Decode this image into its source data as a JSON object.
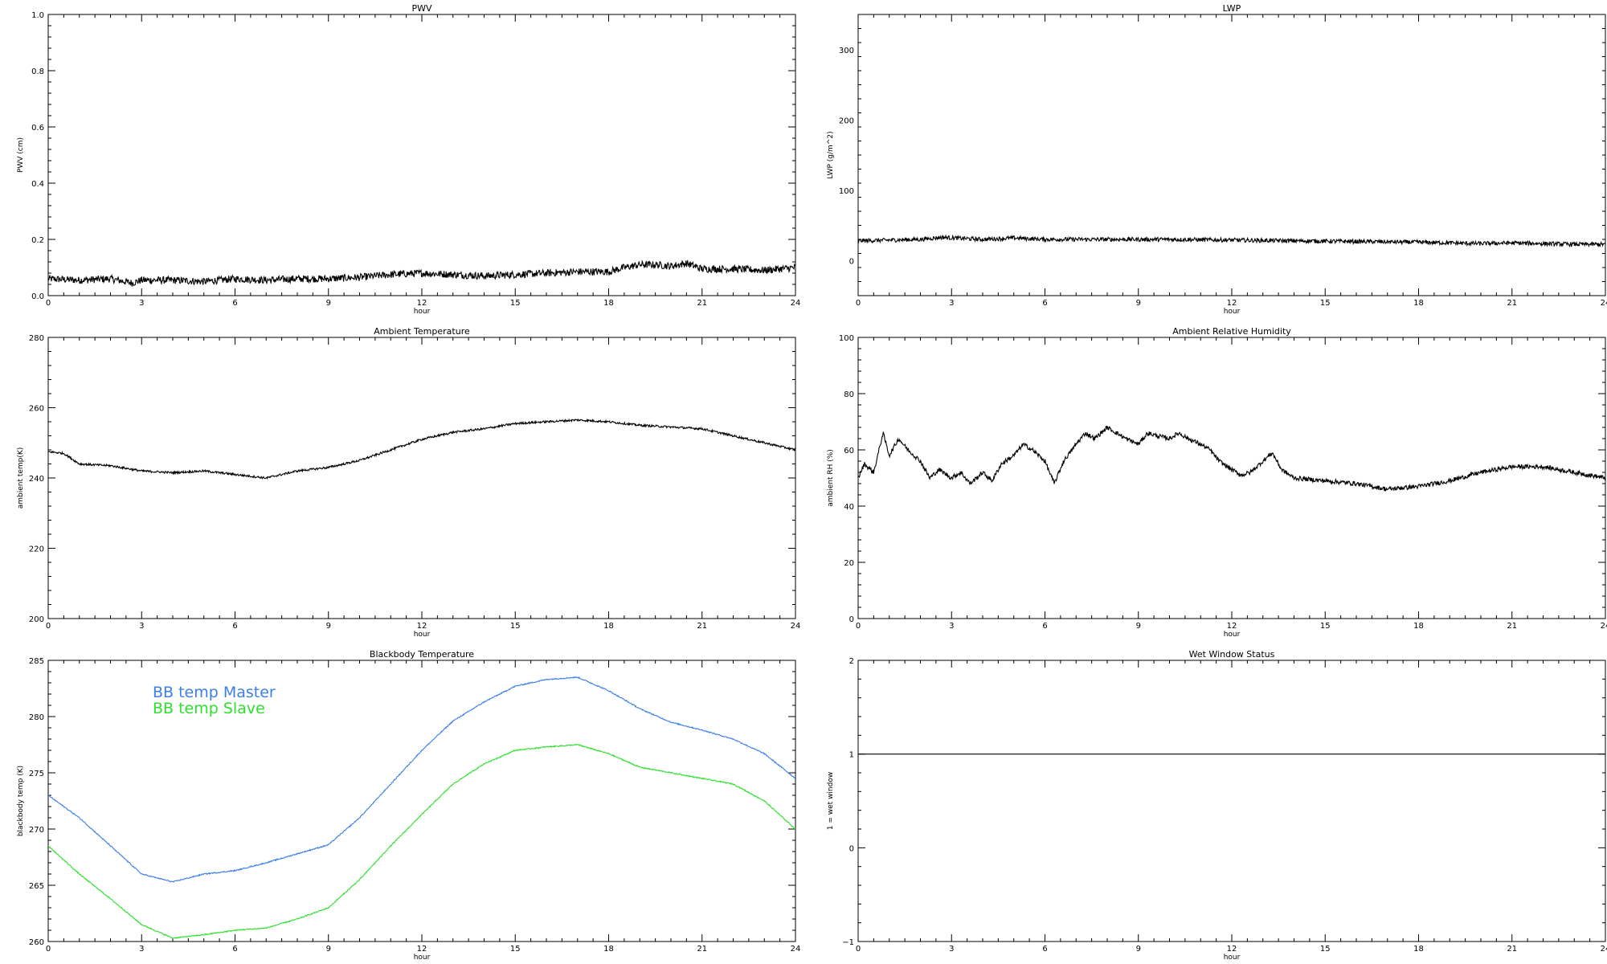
{
  "chart_data": [
    {
      "id": "pwv",
      "type": "line",
      "title": "PWV",
      "xlabel": "hour",
      "ylabel": "PWV (cm)",
      "xlim": [
        0,
        24
      ],
      "ylim": [
        0,
        1
      ],
      "xticks": [
        0,
        3,
        6,
        9,
        12,
        15,
        18,
        21,
        24
      ],
      "yticks": [
        0.0,
        0.2,
        0.4,
        0.6,
        0.8,
        1.0
      ],
      "ytick_labels": [
        "0.0",
        "0.2",
        "0.4",
        "0.6",
        "0.8",
        "1.0"
      ],
      "grid": false,
      "series": [
        {
          "color": "#000000",
          "noise": 0.013,
          "x": [
            0,
            1,
            2,
            2.7,
            3,
            4,
            5,
            6,
            7,
            8,
            9,
            10,
            11,
            12,
            13,
            14,
            15,
            16,
            17,
            18,
            18.5,
            19,
            19.5,
            20,
            20.5,
            21,
            22,
            23,
            24
          ],
          "y": [
            0.06,
            0.055,
            0.06,
            0.045,
            0.055,
            0.055,
            0.05,
            0.06,
            0.055,
            0.06,
            0.06,
            0.065,
            0.075,
            0.08,
            0.075,
            0.07,
            0.075,
            0.08,
            0.085,
            0.085,
            0.1,
            0.11,
            0.11,
            0.105,
            0.115,
            0.095,
            0.095,
            0.09,
            0.1
          ]
        }
      ]
    },
    {
      "id": "lwp",
      "type": "line",
      "title": "LWP",
      "xlabel": "hour",
      "ylabel": "LWP (g/m^2)",
      "xlim": [
        0,
        24
      ],
      "ylim": [
        -50,
        350
      ],
      "xticks": [
        0,
        3,
        6,
        9,
        12,
        15,
        18,
        21,
        24
      ],
      "yticks": [
        0,
        100,
        200,
        300
      ],
      "ytick_labels": [
        "0",
        "100",
        "200",
        "300"
      ],
      "grid": false,
      "series": [
        {
          "color": "#000000",
          "noise": 3,
          "x": [
            0,
            2,
            2.7,
            4,
            5,
            6,
            8,
            10,
            12,
            14,
            16,
            18,
            19,
            20,
            21,
            22,
            23,
            24
          ],
          "y": [
            28,
            30,
            33,
            30,
            32,
            30,
            30,
            30,
            29,
            28,
            27,
            26,
            25,
            24,
            25,
            24,
            23,
            23
          ]
        }
      ]
    },
    {
      "id": "ambient_temperature",
      "type": "line",
      "title": "Ambient Temperature",
      "xlabel": "hour",
      "ylabel": "ambient temp(K)",
      "xlim": [
        0,
        24
      ],
      "ylim": [
        200,
        280
      ],
      "xticks": [
        0,
        3,
        6,
        9,
        12,
        15,
        18,
        21,
        24
      ],
      "yticks": [
        200,
        220,
        240,
        260,
        280
      ],
      "ytick_labels": [
        "200",
        "220",
        "240",
        "260",
        "280"
      ],
      "grid": false,
      "series": [
        {
          "color": "#000000",
          "noise": 0.3,
          "x": [
            0,
            0.5,
            1,
            2,
            3,
            4,
            5,
            6,
            7,
            8,
            9,
            10,
            11,
            12,
            13,
            14,
            15,
            16,
            17,
            18,
            19,
            20,
            21,
            22,
            23,
            24
          ],
          "y": [
            247.5,
            247,
            244,
            243.5,
            242,
            241.5,
            242,
            241,
            240,
            242,
            243,
            245,
            248,
            251,
            253,
            254,
            255.5,
            256,
            256.5,
            256,
            255,
            254.5,
            254,
            252,
            250,
            248
          ]
        }
      ]
    },
    {
      "id": "ambient_relative_humidity",
      "type": "line",
      "title": "Ambient Relative Humidity",
      "xlabel": "hour",
      "ylabel": "ambient RH (%)",
      "xlim": [
        0,
        24
      ],
      "ylim": [
        0,
        100
      ],
      "xticks": [
        0,
        3,
        6,
        9,
        12,
        15,
        18,
        21,
        24
      ],
      "yticks": [
        0,
        20,
        40,
        60,
        80,
        100
      ],
      "ytick_labels": [
        "0",
        "20",
        "40",
        "60",
        "80",
        "100"
      ],
      "grid": false,
      "series": [
        {
          "color": "#000000",
          "noise": 0.8,
          "x": [
            0,
            0.2,
            0.5,
            0.8,
            1.0,
            1.3,
            1.6,
            2.0,
            2.3,
            2.6,
            3.0,
            3.3,
            3.6,
            4.0,
            4.3,
            4.6,
            5.0,
            5.3,
            5.6,
            6.0,
            6.3,
            6.6,
            7.0,
            7.3,
            7.6,
            8.0,
            8.3,
            8.6,
            9.0,
            9.3,
            9.6,
            10.0,
            10.3,
            10.6,
            11.0,
            11.3,
            11.6,
            12.0,
            12.3,
            12.6,
            13.0,
            13.3,
            13.6,
            14.0,
            15.0,
            16.0,
            17.0,
            18.0,
            19.0,
            20.0,
            21.0,
            22.0,
            23.0,
            23.5,
            24.0
          ],
          "y": [
            50,
            55,
            52,
            66,
            58,
            64,
            60,
            56,
            50,
            53,
            50,
            52,
            48,
            52,
            49,
            55,
            58,
            62,
            60,
            56,
            48,
            56,
            62,
            66,
            64,
            68,
            66,
            64,
            62,
            66,
            65,
            64,
            66,
            64,
            62,
            60,
            56,
            53,
            51,
            52,
            56,
            59,
            53,
            50,
            49,
            48,
            46,
            47,
            49,
            52,
            54,
            54,
            52,
            51,
            50
          ]
        }
      ]
    },
    {
      "id": "blackbody_temperature",
      "type": "line",
      "title": "Blackbody Temperature",
      "xlabel": "hour",
      "ylabel": "blackbody temp (K)",
      "xlim": [
        0,
        24
      ],
      "ylim": [
        260,
        285
      ],
      "xticks": [
        0,
        3,
        6,
        9,
        12,
        15,
        18,
        21,
        24
      ],
      "yticks": [
        260,
        265,
        270,
        275,
        280,
        285
      ],
      "ytick_labels": [
        "260",
        "265",
        "270",
        "275",
        "280",
        "285"
      ],
      "grid": false,
      "legend": "top-left",
      "series": [
        {
          "name": "BB temp Master",
          "color": "#3b7fe8",
          "noise": 0.05,
          "x": [
            0,
            1,
            2,
            3,
            4,
            5,
            6,
            7,
            8,
            9,
            10,
            11,
            12,
            13,
            14,
            15,
            16,
            17,
            18,
            19,
            20,
            21,
            22,
            23,
            24
          ],
          "y": [
            273,
            271,
            268.5,
            266,
            265.3,
            266,
            266.3,
            267,
            267.8,
            268.6,
            271,
            274,
            277,
            279.6,
            281.3,
            282.7,
            283.3,
            283.5,
            282.3,
            280.7,
            279.5,
            278.8,
            278,
            276.7,
            274.5
          ]
        },
        {
          "name": "BB temp Slave",
          "color": "#2ee02e",
          "noise": 0.05,
          "x": [
            0,
            1,
            2,
            3,
            4,
            5,
            6,
            7,
            8,
            9,
            10,
            11,
            12,
            13,
            14,
            15,
            16,
            17,
            18,
            19,
            20,
            21,
            22,
            23,
            24
          ],
          "y": [
            268.5,
            266,
            263.8,
            261.5,
            260.3,
            260.6,
            261,
            261.2,
            262,
            263,
            265.5,
            268.5,
            271.3,
            274,
            275.8,
            277,
            277.3,
            277.5,
            276.7,
            275.5,
            275,
            274.5,
            274,
            272.5,
            270
          ]
        }
      ]
    },
    {
      "id": "wet_window_status",
      "type": "line",
      "title": "Wet Window Status",
      "xlabel": "hour",
      "ylabel": "1 = wet window",
      "xlim": [
        0,
        24
      ],
      "ylim": [
        -1,
        2
      ],
      "xticks": [
        0,
        3,
        6,
        9,
        12,
        15,
        18,
        21,
        24
      ],
      "yticks": [
        -1,
        0,
        1,
        2
      ],
      "ytick_labels": [
        "−1",
        "0",
        "1",
        "2"
      ],
      "grid": false,
      "series": [
        {
          "color": "#000000",
          "noise": 0,
          "x": [
            0,
            24
          ],
          "y": [
            1,
            1
          ]
        }
      ]
    }
  ]
}
